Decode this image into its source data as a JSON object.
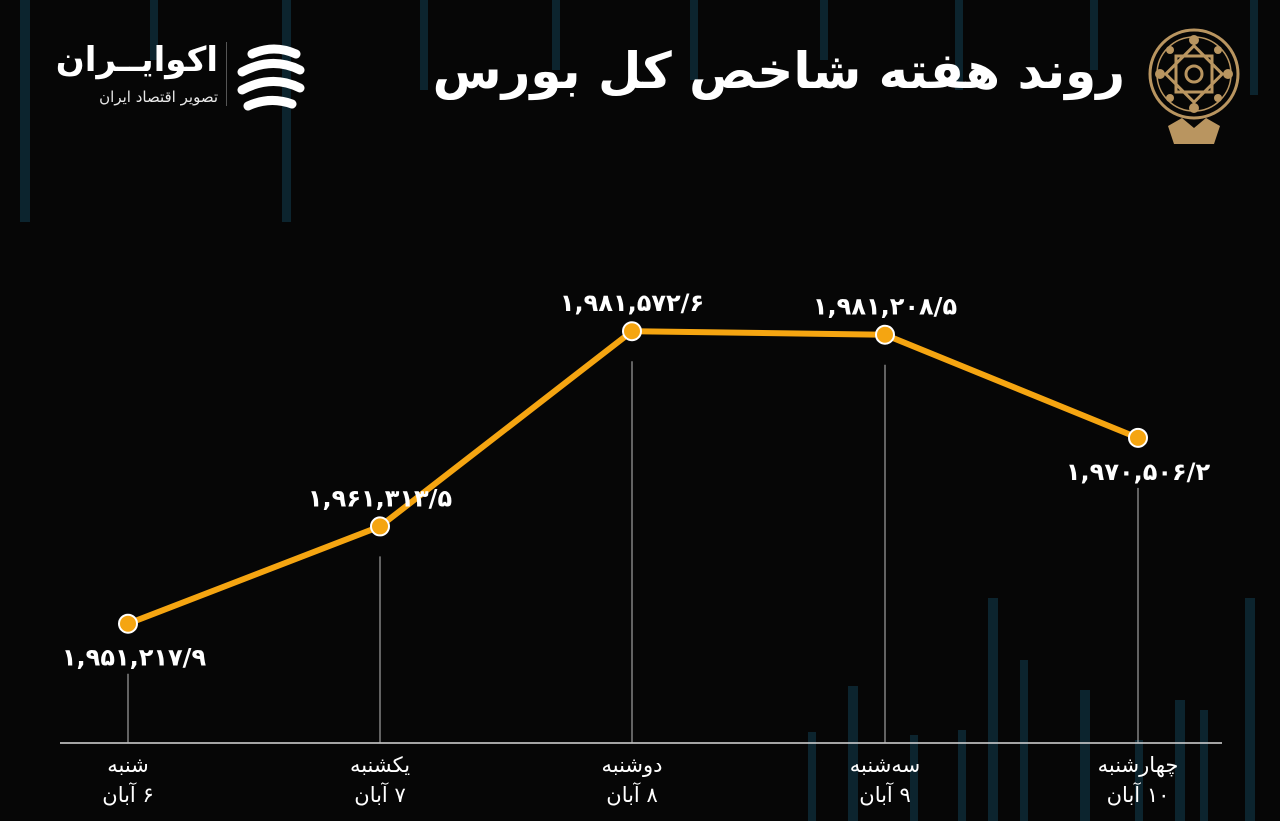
{
  "header": {
    "title": "روند هفته شاخص کل بورس"
  },
  "brand": {
    "name": "اکوایــران",
    "tagline": "تصویر اقتصاد ایران"
  },
  "colors": {
    "background": "#060606",
    "line": "#F5A511",
    "marker_fill": "#F5A511",
    "marker_stroke": "#FFFFFF",
    "decorative_bars": "#0E2A36",
    "emblem": "#B99560"
  },
  "chart_data": {
    "type": "line",
    "title": "روند هفته شاخص کل بورس",
    "categories": [
      "شنبه",
      "یکشنبه",
      "دوشنبه",
      "سه‌شنبه",
      "چهارشنبه"
    ],
    "dates": [
      "۶ آبان",
      "۷ آبان",
      "۸ آبان",
      "۹ آبان",
      "۱۰ آبان"
    ],
    "values": [
      1951217.9,
      1961313.5,
      1981572.6,
      1981208.5,
      1970506.2
    ],
    "value_labels": [
      "۱,۹۵۱,۲۱۷/۹",
      "۱,۹۶۱,۳۱۳/۵",
      "۱,۹۸۱,۵۷۲/۶",
      "۱,۹۸۱,۲۰۸/۵",
      "۱,۹۷۰,۵۰۶/۲"
    ],
    "label_position": [
      "below",
      "above",
      "above",
      "above",
      "below"
    ],
    "ylim": [
      1935000,
      1990000
    ],
    "grid": false,
    "xlabel": "",
    "ylabel": ""
  }
}
